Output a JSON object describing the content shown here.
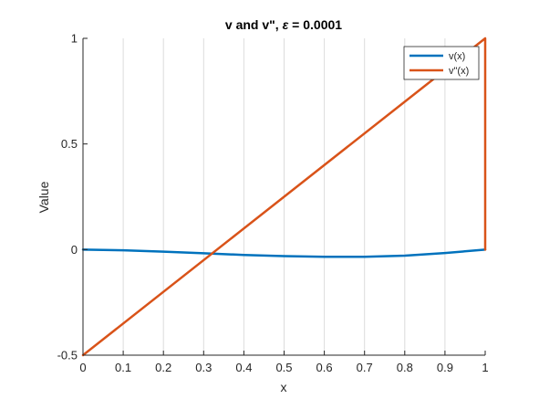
{
  "chart_data": {
    "type": "line",
    "title": "v and v\", ε = 0.0001",
    "title_main": "v and v\", ",
    "title_epsilon": "ε",
    "title_value": " = 0.0001",
    "xlabel": "x",
    "ylabel": "Value",
    "xlim": [
      0,
      1
    ],
    "ylim": [
      -0.5,
      1
    ],
    "xticks": [
      0,
      0.1,
      0.2,
      0.3,
      0.4,
      0.5,
      0.6,
      0.7,
      0.8,
      0.9,
      1
    ],
    "xtick_labels": [
      "0",
      "0.1",
      "0.2",
      "0.3",
      "0.4",
      "0.5",
      "0.6",
      "0.7",
      "0.8",
      "0.9",
      "1"
    ],
    "yticks": [
      -0.5,
      0,
      0.5,
      1
    ],
    "ytick_labels": [
      "-0.5",
      "0",
      "0.5",
      "1"
    ],
    "grid": "vertical",
    "legend_position": "top-right",
    "series": [
      {
        "name": "v(x)",
        "color": "#0072BD",
        "x": [
          0,
          0.1,
          0.2,
          0.3,
          0.4,
          0.5,
          0.6,
          0.7,
          0.8,
          0.9,
          1
        ],
        "y": [
          0,
          -0.0035,
          -0.01,
          -0.0175,
          -0.0255,
          -0.031,
          -0.0345,
          -0.034,
          -0.029,
          -0.0165,
          0
        ]
      },
      {
        "name": "v\"(x)",
        "color": "#D95319",
        "x": [
          0,
          1,
          1
        ],
        "y": [
          -0.5,
          1,
          0
        ]
      }
    ]
  }
}
